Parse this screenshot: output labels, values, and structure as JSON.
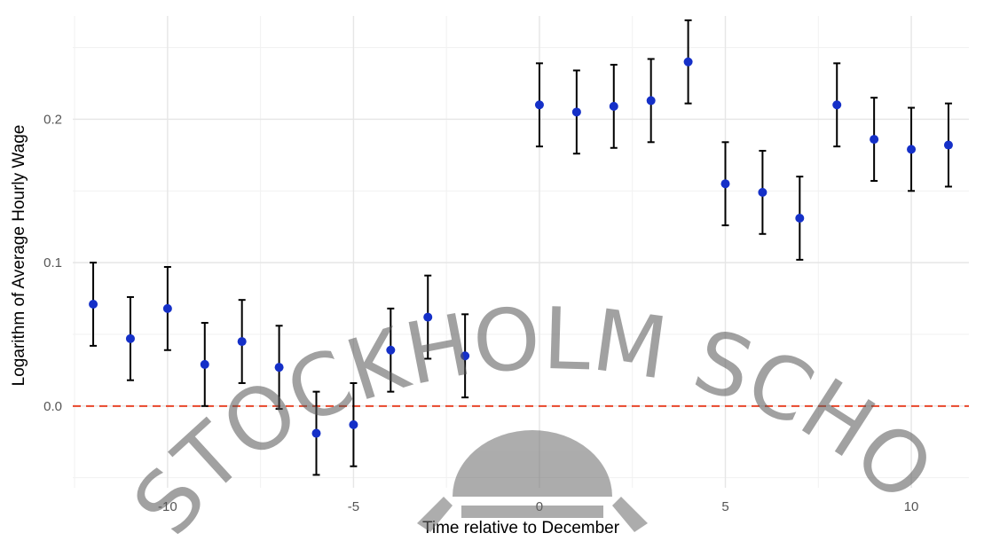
{
  "chart_data": {
    "type": "scatter",
    "title": "",
    "xlabel": "Time relative to December",
    "ylabel": "Logarithm of Average Hourly Wage",
    "xlim": [
      -12.55,
      11.55
    ],
    "ylim": [
      -0.057,
      0.272
    ],
    "x_ticks": [
      -10,
      -5,
      0,
      5,
      10
    ],
    "x_tick_labels": [
      "-10",
      "-5",
      "0",
      "5",
      "10"
    ],
    "y_ticks": [
      0.0,
      0.1,
      0.2
    ],
    "y_tick_labels": [
      "0.0",
      "0.1",
      "0.2"
    ],
    "grid": true,
    "reference_line": {
      "y": 0.0,
      "style": "dashed",
      "color": "#e8462a"
    },
    "point_color": "#1530c8",
    "errorbar_color": "#000000",
    "points": [
      {
        "x": -12,
        "y": 0.071,
        "lower": 0.042,
        "upper": 0.1
      },
      {
        "x": -11,
        "y": 0.047,
        "lower": 0.018,
        "upper": 0.076
      },
      {
        "x": -10,
        "y": 0.068,
        "lower": 0.039,
        "upper": 0.097
      },
      {
        "x": -9,
        "y": 0.029,
        "lower": 0.0,
        "upper": 0.058
      },
      {
        "x": -8,
        "y": 0.045,
        "lower": 0.016,
        "upper": 0.074
      },
      {
        "x": -7,
        "y": 0.027,
        "lower": -0.002,
        "upper": 0.056
      },
      {
        "x": -6,
        "y": -0.019,
        "lower": -0.048,
        "upper": 0.01
      },
      {
        "x": -5,
        "y": -0.013,
        "lower": -0.042,
        "upper": 0.016
      },
      {
        "x": -4,
        "y": 0.039,
        "lower": 0.01,
        "upper": 0.068
      },
      {
        "x": -3,
        "y": 0.062,
        "lower": 0.033,
        "upper": 0.091
      },
      {
        "x": -2,
        "y": 0.035,
        "lower": 0.006,
        "upper": 0.064
      },
      {
        "x": 0,
        "y": 0.21,
        "lower": 0.181,
        "upper": 0.239
      },
      {
        "x": 1,
        "y": 0.205,
        "lower": 0.176,
        "upper": 0.234
      },
      {
        "x": 2,
        "y": 0.209,
        "lower": 0.18,
        "upper": 0.238
      },
      {
        "x": 3,
        "y": 0.213,
        "lower": 0.184,
        "upper": 0.242
      },
      {
        "x": 4,
        "y": 0.24,
        "lower": 0.211,
        "upper": 0.269
      },
      {
        "x": 5,
        "y": 0.155,
        "lower": 0.126,
        "upper": 0.184
      },
      {
        "x": 6,
        "y": 0.149,
        "lower": 0.12,
        "upper": 0.178
      },
      {
        "x": 7,
        "y": 0.131,
        "lower": 0.102,
        "upper": 0.16
      },
      {
        "x": 8,
        "y": 0.21,
        "lower": 0.181,
        "upper": 0.239
      },
      {
        "x": 9,
        "y": 0.186,
        "lower": 0.157,
        "upper": 0.215
      },
      {
        "x": 10,
        "y": 0.179,
        "lower": 0.15,
        "upper": 0.208
      },
      {
        "x": 11,
        "y": 0.182,
        "lower": 0.153,
        "upper": 0.211
      }
    ]
  },
  "watermark": {
    "text": "STOCKHOLM SCHOOL"
  }
}
